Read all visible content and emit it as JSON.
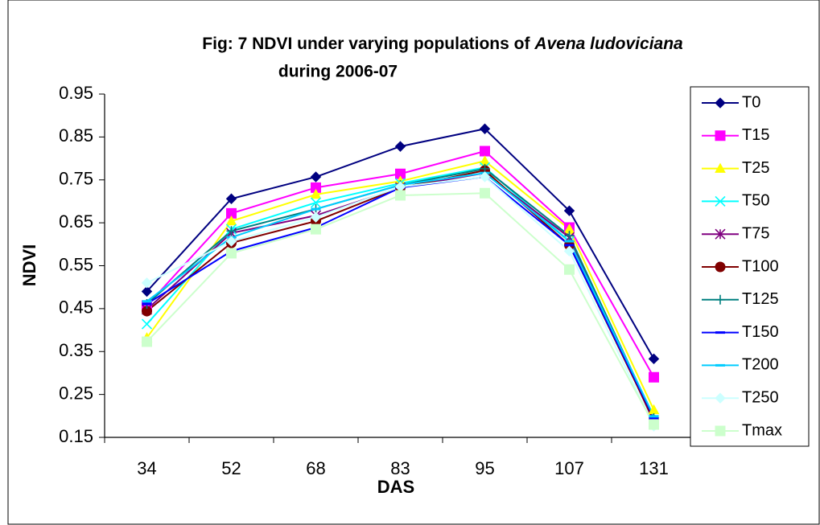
{
  "chart_data": {
    "type": "line",
    "title_parts": [
      "Fig: 7  NDVI under varying populations of ",
      "Avena ludoviciana",
      "during 2006-07"
    ],
    "x_label": "DAS",
    "y_label": "NDVI",
    "categories": [
      "34",
      "52",
      "68",
      "83",
      "95",
      "107",
      "131"
    ],
    "ylim": [
      0.15,
      0.95
    ],
    "yticks": [
      0.15,
      0.25,
      0.35,
      0.45,
      0.55,
      0.65,
      0.75,
      0.85,
      0.95
    ],
    "legend": "right",
    "series": [
      {
        "name": "T0",
        "color": "#000080",
        "marker": "diamond",
        "values": [
          0.49,
          0.706,
          0.757,
          0.828,
          0.869,
          0.678,
          0.333
        ]
      },
      {
        "name": "T15",
        "color": "#ff00ff",
        "marker": "square",
        "values": [
          0.457,
          0.672,
          0.732,
          0.764,
          0.817,
          0.639,
          0.29
        ]
      },
      {
        "name": "T25",
        "color": "#ffff00",
        "marker": "triangle",
        "values": [
          0.382,
          0.654,
          0.716,
          0.747,
          0.794,
          0.635,
          0.214
        ]
      },
      {
        "name": "T50",
        "color": "#00ffff",
        "marker": "x",
        "values": [
          0.414,
          0.635,
          0.697,
          0.742,
          0.779,
          0.607,
          0.19
        ]
      },
      {
        "name": "T75",
        "color": "#800080",
        "marker": "asterisk",
        "values": [
          0.448,
          0.626,
          0.667,
          0.732,
          0.766,
          0.616,
          0.186
        ]
      },
      {
        "name": "T100",
        "color": "#800000",
        "marker": "circle",
        "values": [
          0.444,
          0.603,
          0.654,
          0.732,
          0.772,
          0.598,
          0.19
        ]
      },
      {
        "name": "T125",
        "color": "#008080",
        "marker": "plus",
        "values": [
          0.461,
          0.631,
          0.682,
          0.738,
          0.776,
          0.62,
          0.195
        ]
      },
      {
        "name": "T150",
        "color": "#0000ff",
        "marker": "dash",
        "values": [
          0.461,
          0.584,
          0.639,
          0.732,
          0.757,
          0.598,
          0.195
        ]
      },
      {
        "name": "T200",
        "color": "#00ccff",
        "marker": "dash",
        "values": [
          0.467,
          0.616,
          0.682,
          0.738,
          0.766,
          0.607,
          0.199
        ]
      },
      {
        "name": "T250",
        "color": "#ccffff",
        "marker": "diamond",
        "values": [
          0.51,
          0.607,
          0.663,
          0.734,
          0.757,
          0.584,
          0.176
        ]
      },
      {
        "name": "Tmax",
        "color": "#ccffcc",
        "marker": "square",
        "values": [
          0.373,
          0.579,
          0.635,
          0.714,
          0.719,
          0.541,
          0.18
        ]
      }
    ]
  }
}
